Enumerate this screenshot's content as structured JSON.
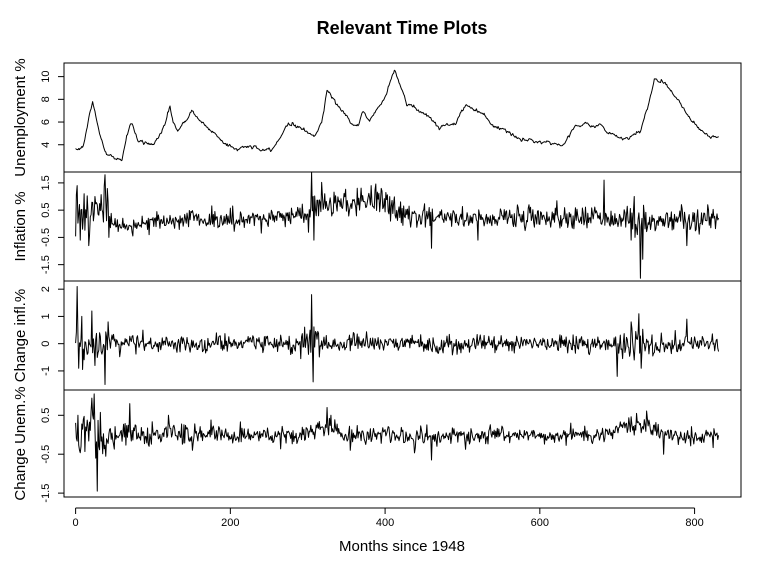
{
  "chart_data": {
    "type": "line",
    "title": "Relevant Time Plots",
    "xlabel": "Months since 1948",
    "xlim": [
      -15,
      860
    ],
    "x_ticks": [
      0,
      200,
      400,
      600,
      800
    ],
    "x_tick_labels": [
      "0",
      "200",
      "400",
      "600",
      "800"
    ],
    "n_points": 832,
    "panels": [
      {
        "id": "unemployment",
        "ylabel": "Unemployment %",
        "ylim": [
          1.6,
          11.2
        ],
        "y_ticks": [
          4,
          6,
          8,
          10
        ],
        "y_tick_labels": [
          "4",
          "6",
          "8",
          "10"
        ],
        "series": [
          {
            "kind": "level",
            "x": [
              0,
              10,
              22,
              30,
              40,
              50,
              60,
              66,
              72,
              80,
              85,
              100,
              115,
              122,
              126,
              132,
              140,
              150,
              160,
              170,
              180,
              195,
              210,
              225,
              240,
              255,
              265,
              275,
              290,
              300,
              310,
              318,
              325,
              335,
              345,
              355,
              365,
              372,
              380,
              392,
              400,
              412,
              420,
              428,
              440,
              455,
              470,
              490,
              505,
              520,
              530,
              540,
              555,
              570,
              590,
              610,
              630,
              645,
              660,
              665,
              678,
              700,
              715,
              730,
              740,
              748,
              760,
              775,
              790,
              805,
              818,
              832
            ],
            "values": [
              3.6,
              3.9,
              7.9,
              5.2,
              3.1,
              2.9,
              2.6,
              4.8,
              6.0,
              4.4,
              4.2,
              4.0,
              5.6,
              7.5,
              6.0,
              5.2,
              5.8,
              7.0,
              6.2,
              5.5,
              5.0,
              4.0,
              3.6,
              3.9,
              3.5,
              3.6,
              4.8,
              5.9,
              5.6,
              5.0,
              4.8,
              6.0,
              8.9,
              7.8,
              7.0,
              6.0,
              5.7,
              6.9,
              6.1,
              7.4,
              8.2,
              10.7,
              9.2,
              7.5,
              7.2,
              6.6,
              5.5,
              5.9,
              7.5,
              7.0,
              6.6,
              5.6,
              5.3,
              4.6,
              4.3,
              4.3,
              3.9,
              5.6,
              6.0,
              5.6,
              5.7,
              4.6,
              4.5,
              5.2,
              7.4,
              9.8,
              9.6,
              8.3,
              6.8,
              5.5,
              4.8,
              4.7
            ],
            "roughness": 0.15
          }
        ]
      },
      {
        "id": "inflation",
        "ylabel": "Inflation %",
        "ylim": [
          -2.1,
          1.9
        ],
        "y_ticks": [
          -1.5,
          -0.5,
          0.5,
          1.5
        ],
        "y_tick_labels": [
          "-1.5",
          "-0.5",
          "0.5",
          "1.5"
        ],
        "series": [
          {
            "kind": "noisy",
            "x": [
              0,
              15,
              30,
              40,
              45,
              60,
              80,
              100,
              150,
              200,
              250,
              280,
              300,
              310,
              330,
              360,
              380,
              395,
              410,
              430,
              460,
              500,
              550,
              600,
              650,
              700,
              715,
              730,
              740,
              760,
              790,
              832
            ],
            "values": [
              0.5,
              0.2,
              0.4,
              0.8,
              0.0,
              -0.1,
              0.0,
              0.1,
              0.2,
              0.1,
              0.2,
              0.3,
              0.4,
              0.8,
              0.7,
              0.8,
              0.9,
              0.9,
              0.5,
              0.3,
              0.2,
              0.2,
              0.25,
              0.25,
              0.25,
              0.2,
              0.1,
              0.0,
              0.1,
              0.2,
              0.1,
              0.2
            ],
            "noise": [
              0.5,
              0.5,
              0.55,
              0.5,
              0.3,
              0.22,
              0.2,
              0.2,
              0.22,
              0.24,
              0.24,
              0.25,
              0.3,
              0.35,
              0.35,
              0.35,
              0.35,
              0.35,
              0.32,
              0.3,
              0.25,
              0.25,
              0.25,
              0.28,
              0.28,
              0.3,
              0.35,
              0.4,
              0.35,
              0.3,
              0.3,
              0.3
            ],
            "spikes": [
              [
                2,
                1.4
              ],
              [
                6,
                -0.6
              ],
              [
                11,
                1.1
              ],
              [
                17,
                -0.8
              ],
              [
                25,
                1.0
              ],
              [
                38,
                1.8
              ],
              [
                43,
                -0.5
              ],
              [
                95,
                -0.4
              ],
              [
                305,
                1.9
              ],
              [
                308,
                -0.6
              ],
              [
                382,
                1.4
              ],
              [
                395,
                1.3
              ],
              [
                460,
                -0.9
              ],
              [
                520,
                -0.6
              ],
              [
                683,
                1.6
              ],
              [
                718,
                -0.6
              ],
              [
                722,
                1.0
              ],
              [
                730,
                -2.0
              ],
              [
                733,
                -1.3
              ],
              [
                790,
                -0.8
              ]
            ]
          }
        ]
      },
      {
        "id": "change_inflation",
        "ylabel": "Change infl.%",
        "ylim": [
          -1.7,
          2.3
        ],
        "y_ticks": [
          -1,
          0,
          1,
          2
        ],
        "y_tick_labels": [
          "-1",
          "0",
          "1",
          "2"
        ],
        "series": [
          {
            "kind": "noisy",
            "x": [
              0,
              20,
              40,
              50,
              100,
              200,
              300,
              310,
              330,
              400,
              500,
              600,
              680,
              700,
              740,
              760,
              832
            ],
            "values": [
              0,
              0,
              0,
              0,
              0,
              0,
              0,
              0,
              0,
              0,
              0,
              0,
              0,
              0,
              0,
              0,
              0
            ],
            "noise": [
              0.45,
              0.45,
              0.45,
              0.28,
              0.22,
              0.2,
              0.28,
              0.3,
              0.24,
              0.22,
              0.2,
              0.2,
              0.22,
              0.3,
              0.32,
              0.25,
              0.24
            ],
            "spikes": [
              [
                2,
                2.1
              ],
              [
                4,
                -0.9
              ],
              [
                8,
                1.0
              ],
              [
                21,
                1.2
              ],
              [
                25,
                -0.8
              ],
              [
                38,
                -1.5
              ],
              [
                42,
                0.8
              ],
              [
                305,
                1.8
              ],
              [
                307,
                -1.4
              ],
              [
                700,
                -1.2
              ],
              [
                718,
                0.8
              ],
              [
                722,
                -0.6
              ],
              [
                728,
                1.1
              ],
              [
                731,
                -0.9
              ],
              [
                790,
                0.9
              ]
            ]
          }
        ]
      },
      {
        "id": "change_unemployment",
        "ylabel": "Change Unem.%",
        "ylim": [
          -1.6,
          1.15
        ],
        "y_ticks": [
          -1.5,
          -0.5,
          0.5
        ],
        "y_tick_labels": [
          "-1.5",
          "-0.5",
          "0.5"
        ],
        "series": [
          {
            "kind": "noisy",
            "x": [
              0,
              10,
              20,
              25,
              35,
              50,
              60,
              70,
              90,
              130,
              200,
              300,
              330,
              340,
              360,
              400,
              450,
              500,
              600,
              680,
              720,
              740,
              760,
              800,
              832
            ],
            "values": [
              0.0,
              0.0,
              0.3,
              0.0,
              -0.2,
              -0.1,
              0.0,
              0.1,
              0.0,
              0.05,
              -0.05,
              0.0,
              0.25,
              0.05,
              -0.05,
              0.05,
              -0.05,
              0.0,
              -0.05,
              0.0,
              0.3,
              0.25,
              0.0,
              -0.1,
              0.0
            ],
            "noise": [
              0.35,
              0.35,
              0.4,
              0.4,
              0.35,
              0.25,
              0.22,
              0.25,
              0.2,
              0.2,
              0.15,
              0.15,
              0.2,
              0.18,
              0.15,
              0.15,
              0.15,
              0.12,
              0.12,
              0.13,
              0.15,
              0.15,
              0.15,
              0.15,
              0.15
            ],
            "spikes": [
              [
                3,
                0.5
              ],
              [
                20,
                0.6
              ],
              [
                24,
                1.05
              ],
              [
                26,
                -0.6
              ],
              [
                28,
                -1.45
              ],
              [
                30,
                -0.3
              ],
              [
                70,
                0.8
              ],
              [
                120,
                0.5
              ],
              [
                325,
                0.7
              ],
              [
                330,
                0.5
              ],
              [
                355,
                -0.4
              ],
              [
                460,
                -0.65
              ],
              [
                640,
                0.3
              ],
              [
                725,
                0.55
              ],
              [
                760,
                -0.5
              ]
            ]
          }
        ]
      }
    ]
  }
}
